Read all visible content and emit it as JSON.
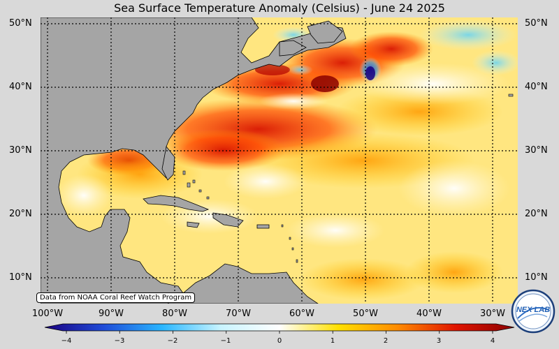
{
  "title": "Sea Surface Temperature Anomaly (Celsius) - June 24 2025",
  "lat_labels": [
    "50°N",
    "40°N",
    "30°N",
    "20°N",
    "10°N"
  ],
  "lon_labels": [
    "100°W",
    "90°W",
    "80°W",
    "70°W",
    "60°W",
    "50°W",
    "40°W",
    "30°W"
  ],
  "colorbar": {
    "min": -4,
    "max": 4,
    "ticks": [
      "−4",
      "−3",
      "−2",
      "−1",
      "0",
      "1",
      "2",
      "3",
      "4"
    ],
    "colors": [
      "#1a0080",
      "#1f4bd8",
      "#29b6ff",
      "#c8f4ff",
      "#ffffff",
      "#ffe000",
      "#ff8c00",
      "#e01400",
      "#8b0000"
    ]
  },
  "credit": "Data from NOAA Coral Reef Watch Program",
  "logo_text": "NEX LAB",
  "land_color": "#a5a5a5",
  "ocean_base_color": "#ffe680"
}
